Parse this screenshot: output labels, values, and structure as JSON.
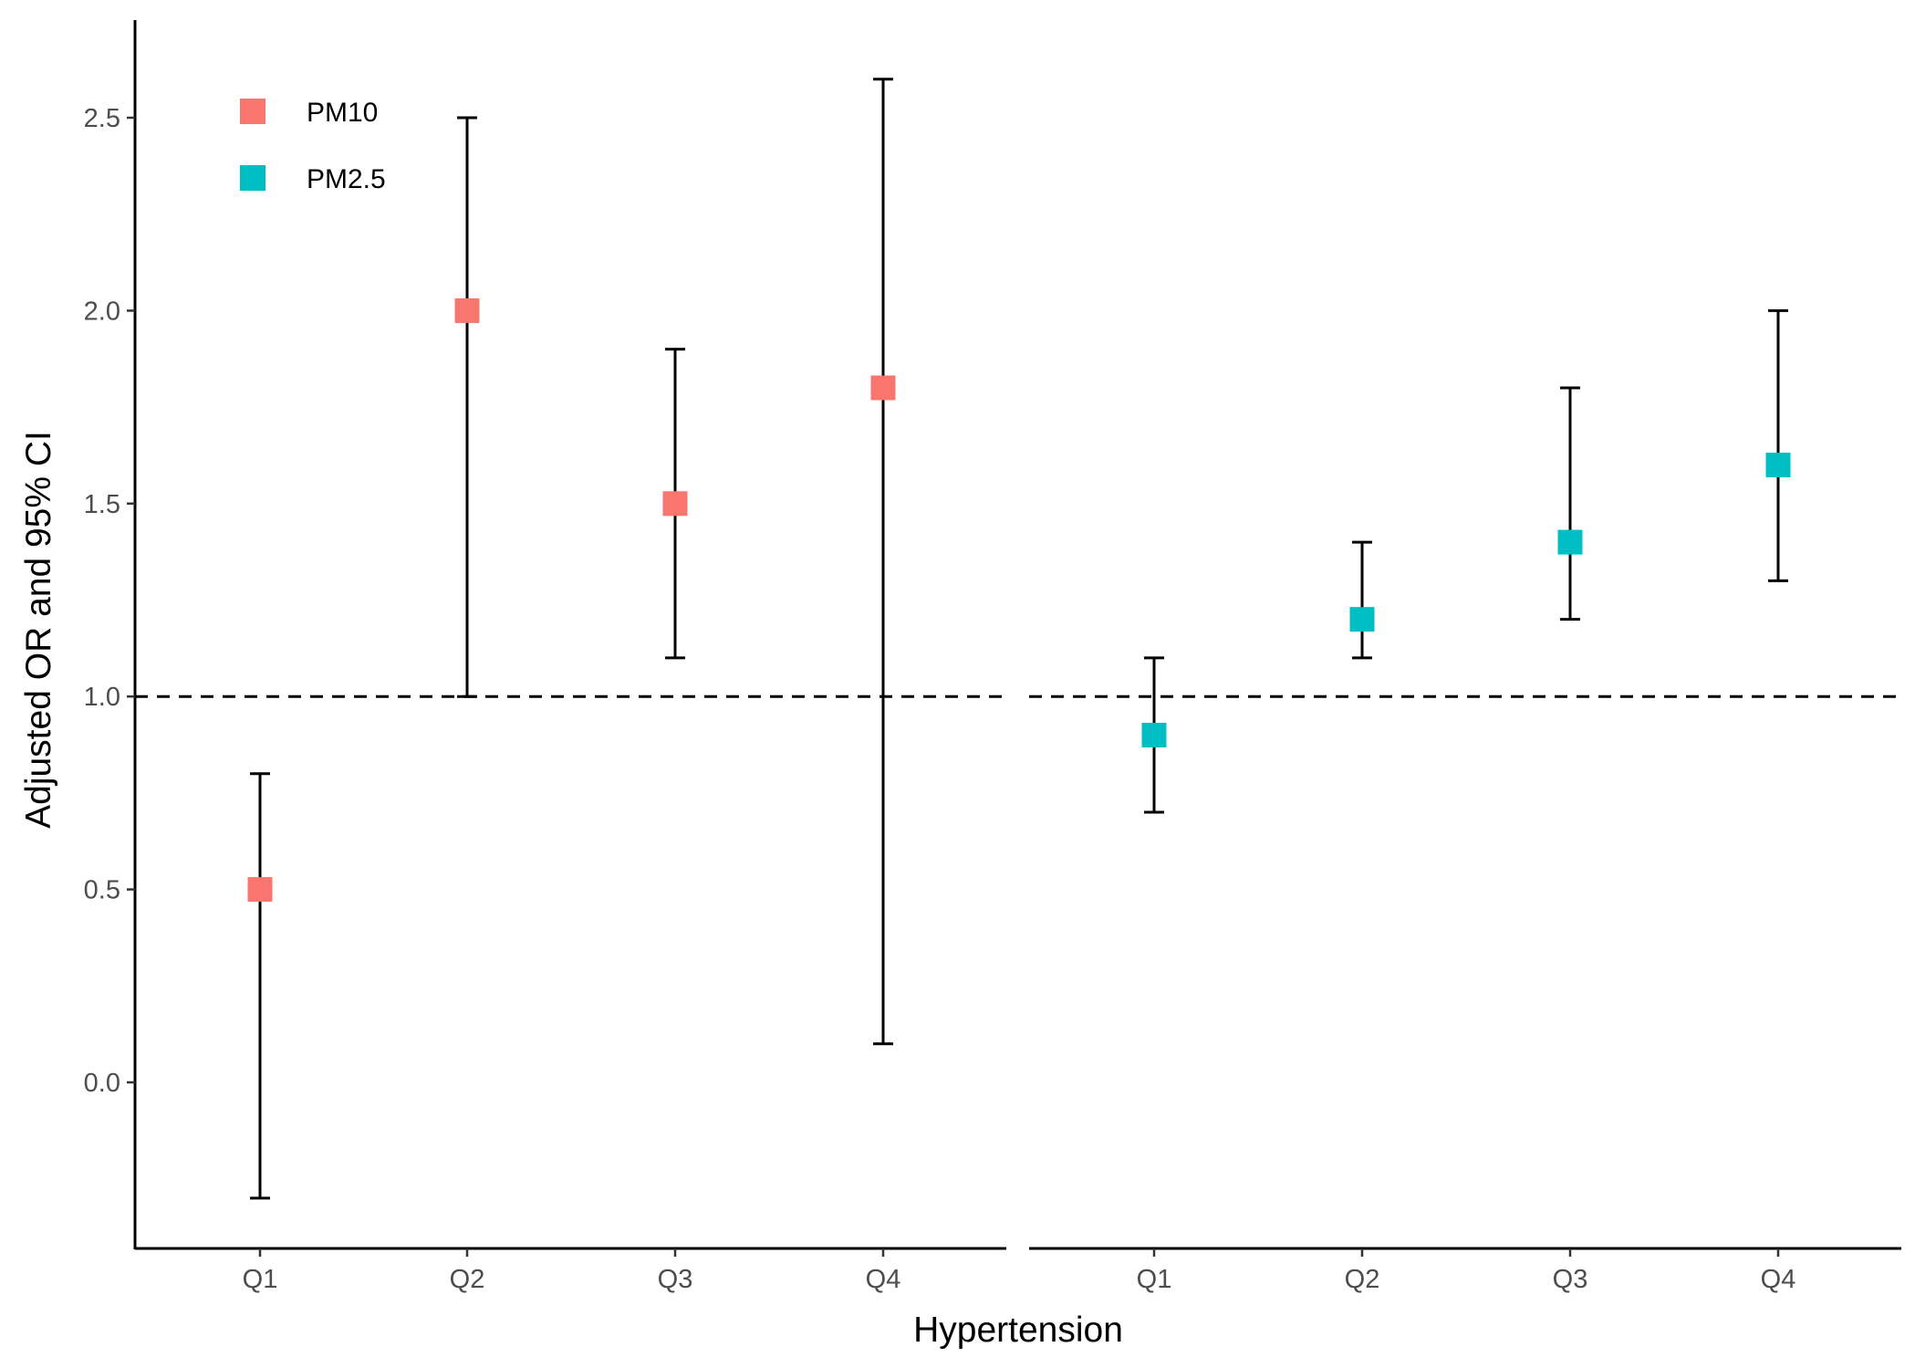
{
  "chart_data": {
    "type": "scatter",
    "subtype": "point-range with error bars, two panels",
    "xlabel": "Hypertension",
    "ylabel": "Adjusted OR and 95% CI",
    "ylim": [
      -0.45,
      2.75
    ],
    "yticks": [
      0.0,
      0.5,
      1.0,
      1.5,
      2.0,
      2.5
    ],
    "ytick_labels": [
      "0.0",
      "0.5",
      "1.0",
      "1.5",
      "2.0",
      "2.5"
    ],
    "reference_line": {
      "y": 1.0,
      "style": "dashed"
    },
    "legend_position": "top-left",
    "grid": false,
    "marker": "square",
    "series": [
      {
        "name": "PM10",
        "color": "#F8766D",
        "panel": 1,
        "categories": [
          "Q1",
          "Q2",
          "Q3",
          "Q4"
        ],
        "values": [
          0.5,
          2.0,
          1.5,
          1.8
        ],
        "lower": [
          -0.3,
          1.0,
          1.1,
          0.1
        ],
        "upper": [
          0.8,
          2.5,
          1.9,
          2.6
        ]
      },
      {
        "name": "PM2.5",
        "color": "#00BFC4",
        "panel": 2,
        "categories": [
          "Q1",
          "Q2",
          "Q3",
          "Q4"
        ],
        "values": [
          0.9,
          1.2,
          1.4,
          1.6
        ],
        "lower": [
          0.7,
          1.1,
          1.2,
          1.3
        ],
        "upper": [
          1.1,
          1.4,
          1.8,
          2.0
        ]
      }
    ]
  }
}
